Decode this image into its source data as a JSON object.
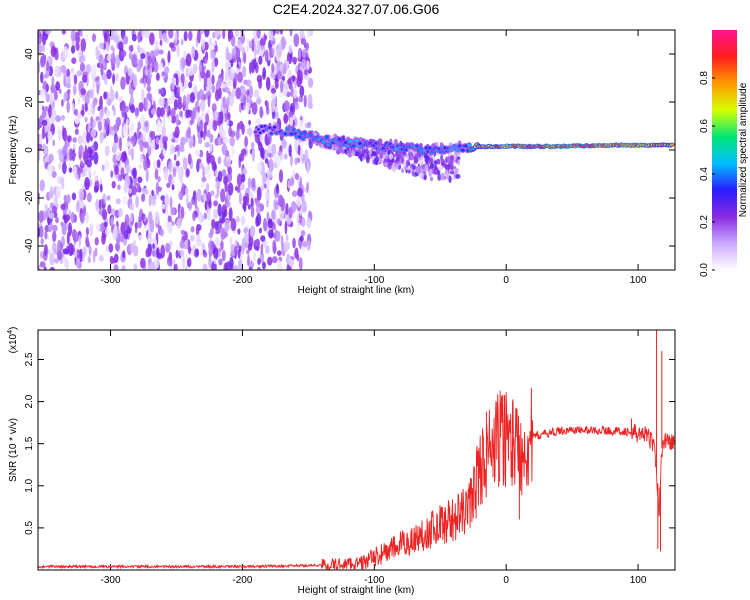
{
  "chart_data": [
    {
      "type": "heatmap",
      "title": "C2E4.2024.327.07.06.G06",
      "xlabel": "Height of straight line (km)",
      "ylabel": "Frequency (Hz)",
      "xlim": [
        -355,
        128
      ],
      "ylim": [
        -50,
        50
      ],
      "xticks": [
        -300,
        -200,
        -100,
        0,
        100
      ],
      "yticks": [
        -40,
        -20,
        0,
        20,
        40
      ],
      "colorbar": {
        "label": "Normalized spectral amplitude",
        "range": [
          0.0,
          1.0
        ],
        "ticks": [
          "0.0",
          "0.2",
          "0.4",
          "0.6",
          "0.8"
        ],
        "tick_values": [
          0.0,
          0.2,
          0.4,
          0.6,
          0.8
        ],
        "colormap": [
          "#ffffff",
          "#c9a8ff",
          "#8a2be2",
          "#2a1cff",
          "#00bfff",
          "#00e676",
          "#d7ff00",
          "#ff9800",
          "#ff1e1e",
          "#ff1493"
        ]
      },
      "features": {
        "noise_region_x": [
          -355,
          -148
        ],
        "signal_trace": [
          [
            -190,
            9
          ],
          [
            -160,
            7
          ],
          [
            -140,
            4
          ],
          [
            -120,
            3
          ],
          [
            -100,
            2
          ],
          [
            -80,
            1
          ],
          [
            -60,
            0
          ],
          [
            -40,
            1
          ],
          [
            -20,
            1.5
          ],
          [
            0,
            1.5
          ],
          [
            40,
            1.5
          ],
          [
            80,
            2
          ],
          [
            100,
            2
          ],
          [
            125,
            2
          ]
        ],
        "trace_amplitude": [
          [
            -190,
            0.3
          ],
          [
            -150,
            0.45
          ],
          [
            -100,
            0.4
          ],
          [
            -60,
            0.42
          ],
          [
            -30,
            0.4
          ],
          [
            -20,
            0.75
          ],
          [
            0,
            0.85
          ],
          [
            60,
            0.9
          ],
          [
            100,
            0.85
          ],
          [
            125,
            0.7
          ]
        ]
      }
    },
    {
      "type": "line",
      "title": "",
      "xlabel": "Height of straight line (km)",
      "ylabel": "SNR (10 * v/v)",
      "y_multiplier": "(x10",
      "y_multiplier_exp": "4",
      "y_multiplier_close": ")",
      "xlim": [
        -355,
        128
      ],
      "ylim": [
        0,
        2.85
      ],
      "xticks": [
        -300,
        -200,
        -100,
        0,
        100
      ],
      "yticks": [
        "0.5",
        "1.0",
        "1.5",
        "2.0",
        "2.5"
      ],
      "ytick_values": [
        0.5,
        1.0,
        1.5,
        2.0,
        2.5
      ],
      "series": [
        {
          "color": "#ee2222",
          "x": [
            -355,
            -300,
            -250,
            -200,
            -160,
            -130,
            -110,
            -100,
            -90,
            -80,
            -70,
            -60,
            -50,
            -40,
            -30,
            -25,
            -20,
            -15,
            -10,
            -5,
            0,
            5,
            10,
            15,
            20,
            30,
            40,
            50,
            60,
            70,
            80,
            90,
            95,
            100,
            105,
            110,
            113,
            116,
            118,
            120,
            125,
            128
          ],
          "y": [
            0.04,
            0.04,
            0.04,
            0.04,
            0.05,
            0.06,
            0.08,
            0.15,
            0.22,
            0.3,
            0.36,
            0.45,
            0.55,
            0.6,
            0.7,
            0.9,
            1.2,
            1.35,
            1.45,
            1.55,
            1.6,
            1.55,
            1.4,
            1.5,
            1.58,
            1.62,
            1.65,
            1.66,
            1.66,
            1.66,
            1.65,
            1.65,
            1.62,
            1.62,
            1.6,
            1.55,
            1.4,
            0.7,
            1.45,
            1.55,
            1.52,
            1.5
          ]
        }
      ],
      "spikes": [
        [
          -15,
          1.88
        ],
        [
          -10,
          1.1
        ],
        [
          5,
          1.1
        ],
        [
          10,
          0.6
        ],
        [
          95,
          1.8
        ],
        [
          114,
          2.85
        ],
        [
          115,
          0.25
        ],
        [
          117,
          0.22
        ],
        [
          118,
          2.6
        ]
      ]
    }
  ]
}
